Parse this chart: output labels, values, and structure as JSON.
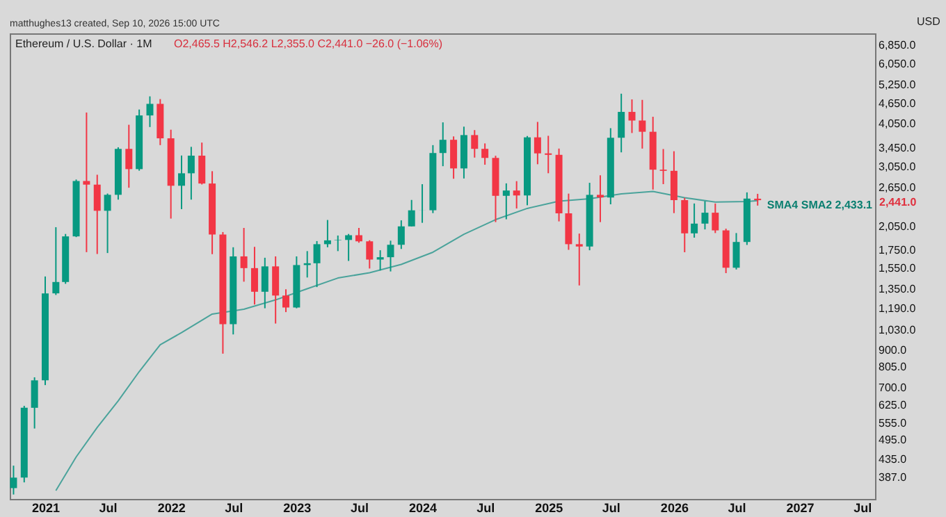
{
  "chart_data": {
    "type": "candlestick",
    "title": "Ethereum / U.S. Dollar · 1M",
    "subtitle": "O2,465.5 H2,546.2 L2,355.0 C2,441.0 −26.0 (−1.06%)",
    "x": [
      "2020-10",
      "2020-11",
      "2020-12",
      "2021-01",
      "2021-02",
      "2021-03",
      "2021-04",
      "2021-05",
      "2021-06",
      "2021-07",
      "2021-08",
      "2021-09",
      "2021-10",
      "2021-11",
      "2021-12",
      "2022-01",
      "2022-02",
      "2022-03",
      "2022-04",
      "2022-05",
      "2022-06",
      "2022-07",
      "2022-08",
      "2022-09",
      "2022-10",
      "2022-11",
      "2022-12",
      "2023-01",
      "2023-02",
      "2023-03",
      "2023-04",
      "2023-05",
      "2023-06",
      "2023-07",
      "2023-08",
      "2023-09",
      "2023-10",
      "2023-11",
      "2023-12",
      "2024-01",
      "2024-02",
      "2024-03",
      "2024-04",
      "2024-05",
      "2024-06",
      "2024-07",
      "2024-08",
      "2024-09",
      "2024-10",
      "2024-11",
      "2024-12",
      "2025-01",
      "2025-02",
      "2025-03",
      "2025-04",
      "2025-05",
      "2025-06",
      "2025-07",
      "2025-08",
      "2025-09",
      "2025-10",
      "2025-11",
      "2025-12",
      "2026-01",
      "2026-02",
      "2026-03",
      "2026-04",
      "2026-05",
      "2026-06",
      "2026-07",
      "2026-08",
      "2026-09"
    ],
    "ohlc": [
      [
        360,
        418,
        345,
        386
      ],
      [
        386,
        622,
        374,
        614
      ],
      [
        614,
        752,
        535,
        737
      ],
      [
        737,
        1470,
        714,
        1314
      ],
      [
        1314,
        2040,
        1300,
        1417
      ],
      [
        1417,
        1950,
        1400,
        1919
      ],
      [
        1919,
        2800,
        1910,
        2773
      ],
      [
        2773,
        4372,
        1728,
        2707
      ],
      [
        2707,
        2891,
        1707,
        2275
      ],
      [
        2275,
        2551,
        1718,
        2530
      ],
      [
        2530,
        3470,
        2450,
        3433
      ],
      [
        3433,
        4030,
        2652,
        3001
      ],
      [
        3001,
        4460,
        2970,
        4288
      ],
      [
        4288,
        4868,
        3970,
        4631
      ],
      [
        4631,
        4780,
        3520,
        3683
      ],
      [
        3683,
        3900,
        2160,
        2687
      ],
      [
        2687,
        3285,
        2300,
        2919
      ],
      [
        2919,
        3480,
        2450,
        3282
      ],
      [
        3282,
        3580,
        2710,
        2727
      ],
      [
        2727,
        2960,
        1705,
        1943
      ],
      [
        1943,
        1975,
        880,
        1070
      ],
      [
        1070,
        1785,
        1000,
        1680
      ],
      [
        1680,
        2030,
        1420,
        1554
      ],
      [
        1554,
        1790,
        1220,
        1328
      ],
      [
        1328,
        1665,
        1190,
        1572
      ],
      [
        1572,
        1680,
        1075,
        1295
      ],
      [
        1295,
        1350,
        1160,
        1196
      ],
      [
        1196,
        1680,
        1190,
        1586
      ],
      [
        1586,
        1740,
        1460,
        1605
      ],
      [
        1605,
        1860,
        1370,
        1822
      ],
      [
        1822,
        2140,
        1785,
        1869
      ],
      [
        1869,
        1930,
        1740,
        1874
      ],
      [
        1874,
        1950,
        1630,
        1934
      ],
      [
        1934,
        2030,
        1840,
        1857
      ],
      [
        1857,
        1870,
        1550,
        1645
      ],
      [
        1645,
        1750,
        1530,
        1671
      ],
      [
        1671,
        1865,
        1520,
        1815
      ],
      [
        1815,
        2135,
        1765,
        2051
      ],
      [
        2051,
        2445,
        2050,
        2282
      ],
      [
        2282,
        2715,
        2100,
        2283
      ],
      [
        2283,
        3520,
        2240,
        3340
      ],
      [
        3340,
        4095,
        3060,
        3647
      ],
      [
        3647,
        3730,
        2815,
        3015
      ],
      [
        3015,
        3980,
        2820,
        3763
      ],
      [
        3763,
        3890,
        3240,
        3434
      ],
      [
        3434,
        3560,
        3090,
        3233
      ],
      [
        3233,
        3280,
        2110,
        2513
      ],
      [
        2513,
        2730,
        2150,
        2603
      ],
      [
        2603,
        2770,
        2310,
        2519
      ],
      [
        2519,
        3740,
        2360,
        3707
      ],
      [
        3707,
        4107,
        3100,
        3332
      ],
      [
        3332,
        3745,
        2920,
        3300
      ],
      [
        3300,
        3440,
        2120,
        2237
      ],
      [
        2237,
        2550,
        1755,
        1822
      ],
      [
        1822,
        1955,
        1385,
        1794
      ],
      [
        1794,
        2740,
        1750,
        2529
      ],
      [
        2529,
        2880,
        2110,
        2486
      ],
      [
        2486,
        3940,
        2375,
        3697
      ],
      [
        3697,
        4955,
        3355,
        4390
      ],
      [
        4390,
        4770,
        3815,
        4145
      ],
      [
        4145,
        4755,
        3440,
        3847
      ],
      [
        3847,
        4250,
        2620,
        2990
      ],
      [
        2990,
        3430,
        2716,
        2967
      ],
      [
        2967,
        3380,
        2240,
        2442
      ],
      [
        2442,
        2480,
        1727,
        1958
      ],
      [
        1958,
        2388,
        1903,
        2089
      ],
      [
        2089,
        2425,
        2010,
        2246
      ],
      [
        2246,
        2388,
        1962,
        1997
      ],
      [
        1997,
        2020,
        1503,
        1558
      ],
      [
        1558,
        1962,
        1540,
        1849
      ],
      [
        1849,
        2571,
        1813,
        2467
      ],
      [
        2465.5,
        2546.2,
        2355.0,
        2441.0
      ]
    ],
    "colors": [
      "#089981",
      "#089981",
      "#089981",
      "#089981",
      "#089981",
      "#089981",
      "#089981",
      "#f23645",
      "#f23645",
      "#089981",
      "#089981",
      "#f23645",
      "#089981",
      "#089981",
      "#f23645",
      "#f23645",
      "#089981",
      "#089981",
      "#f23645",
      "#f23645",
      "#f23645",
      "#089981",
      "#f23645",
      "#f23645",
      "#089981",
      "#f23645",
      "#f23645",
      "#089981",
      "#089981",
      "#089981",
      "#089981",
      "#089981",
      "#089981",
      "#f23645",
      "#f23645",
      "#089981",
      "#089981",
      "#089981",
      "#089981",
      "#089981",
      "#089981",
      "#089981",
      "#f23645",
      "#089981",
      "#f23645",
      "#f23645",
      "#f23645",
      "#089981",
      "#f23645",
      "#089981",
      "#f23645",
      "#f23645",
      "#f23645",
      "#f23645",
      "#f23645",
      "#089981",
      "#f23645",
      "#089981",
      "#089981",
      "#f23645",
      "#f23645",
      "#f23645",
      "#f23645",
      "#f23645",
      "#f23645",
      "#089981",
      "#089981",
      "#f23645",
      "#f23645",
      "#089981",
      "#089981",
      "#f23645"
    ],
    "series": [
      {
        "type": "line",
        "color": "#4aa39b",
        "x": [
          "2021-02",
          "2021-04",
          "2021-06",
          "2021-08",
          "2021-10",
          "2021-12",
          "2022-02",
          "2022-05",
          "2022-08",
          "2022-11",
          "2023-02",
          "2023-05",
          "2023-08",
          "2023-11",
          "2024-02",
          "2024-05",
          "2024-08",
          "2024-11",
          "2025-02",
          "2025-05",
          "2025-08",
          "2025-11",
          "2026-02",
          "2026-05",
          "2026-08",
          "2026-09"
        ],
        "values": [
          354,
          443,
          539,
          643,
          781,
          934,
          1012,
          1145,
          1182,
          1258,
          1355,
          1455,
          1507,
          1593,
          1727,
          1946,
          2145,
          2311,
          2425,
          2465,
          2546,
          2588,
          2481,
          2410,
          2420,
          2433.1
        ]
      }
    ],
    "xlim": [
      "2020-09-20",
      "2027-08-08"
    ],
    "xticks": [
      {
        "value": "2021-01",
        "label": "2021"
      },
      {
        "value": "2021-07",
        "label": "Jul"
      },
      {
        "value": "2022-01",
        "label": "2022"
      },
      {
        "value": "2022-07",
        "label": "Jul"
      },
      {
        "value": "2023-01",
        "label": "2023"
      },
      {
        "value": "2023-07",
        "label": "Jul"
      },
      {
        "value": "2024-01",
        "label": "2024"
      },
      {
        "value": "2024-07",
        "label": "Jul"
      },
      {
        "value": "2025-01",
        "label": "2025"
      },
      {
        "value": "2025-07",
        "label": "Jul"
      },
      {
        "value": "2026-01",
        "label": "2026"
      },
      {
        "value": "2026-07",
        "label": "Jul"
      },
      {
        "value": "2027-01",
        "label": "2027"
      },
      {
        "value": "2027-07",
        "label": "Jul"
      }
    ],
    "log": true,
    "ylim": [
      335,
      7400
    ],
    "yticks": [
      {
        "value": 387,
        "label": "387.0"
      },
      {
        "value": 435,
        "label": "435.0"
      },
      {
        "value": 495,
        "label": "495.0"
      },
      {
        "value": 555,
        "label": "555.0"
      },
      {
        "value": 625,
        "label": "625.0"
      },
      {
        "value": 700,
        "label": "700.0"
      },
      {
        "value": 805,
        "label": "805.0"
      },
      {
        "value": 900,
        "label": "900.0"
      },
      {
        "value": 1030,
        "label": "1,030.0"
      },
      {
        "value": 1190,
        "label": "1,190.0"
      },
      {
        "value": 1350,
        "label": "1,350.0"
      },
      {
        "value": 1550,
        "label": "1,550.0"
      },
      {
        "value": 1750,
        "label": "1,750.0"
      },
      {
        "value": 2050,
        "label": "2,050.0"
      },
      {
        "value": 2650,
        "label": "2,650.0"
      },
      {
        "value": 3050,
        "label": "3,050.0"
      },
      {
        "value": 3450,
        "label": "3,450.0"
      },
      {
        "value": 4050,
        "label": "4,050.0"
      },
      {
        "value": 4650,
        "label": "4,650.0"
      },
      {
        "value": 5250,
        "label": "5,250.0"
      },
      {
        "value": 6050,
        "label": "6,050.0"
      },
      {
        "value": 6850,
        "label": "6,850.0"
      }
    ],
    "annotations": [
      "matthughes13 created, Sep 10, 2026 15:00 UTC",
      "USD",
      "2,441.0",
      "SMA4 SMA2 2,433.1"
    ]
  }
}
